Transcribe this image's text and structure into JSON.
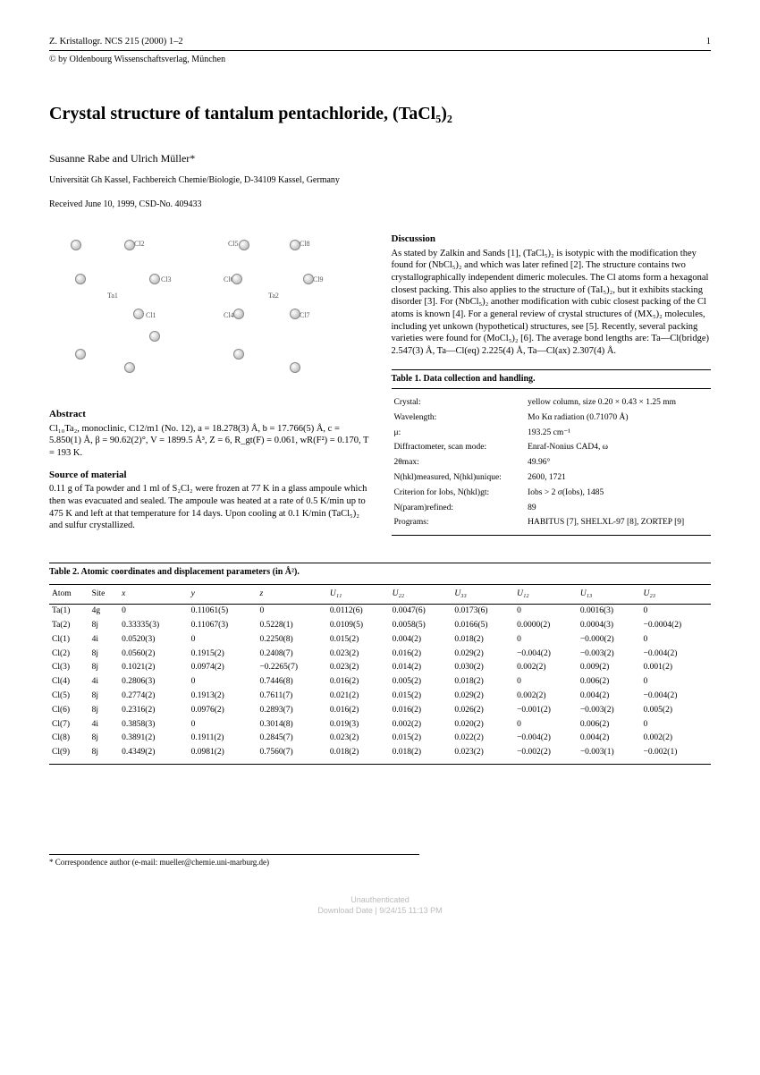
{
  "header": {
    "journal_left": "Z. Kristallogr. NCS 215 (2000) 1–2",
    "page_number": "1",
    "copyright": "© by Oldenbourg Wissenschaftsverlag, München"
  },
  "title": "Crystal structure of tantalum pentachloride, (TaCl₅)₂",
  "authors": "Susanne Rabe and Ulrich Müller*",
  "affiliation": "Universität Gh Kassel, Fachbereich Chemie/Biologie, D-34109 Kassel, Germany",
  "received": "Received June 10, 1999, CSD-No. 409433",
  "figure_labels": [
    "Cl2",
    "Cl3",
    "Cl1",
    "Ta1",
    "Cl5",
    "Cl6",
    "Cl8",
    "Cl4",
    "Cl9",
    "Ta2",
    "Cl7"
  ],
  "abstract": {
    "heading": "Abstract",
    "text": "Cl₁₀Ta₂, monoclinic, C12/m1 (No. 12), a = 18.278(3) Å, b = 17.766(5) Å, c = 5.850(1) Å, β = 90.62(2)°, V = 1899.5 Å³, Z = 6, R_gt(F) = 0.061, wR(F²) = 0.170, T = 193 K."
  },
  "source": {
    "heading": "Source of material",
    "text": "0.11 g of Ta powder and 1 ml of S₂Cl₂ were frozen at 77 K in a glass ampoule which then was evacuated and sealed. The ampoule was heated at a rate of 0.5 K/min up to 475 K and left at that temperature for 14 days. Upon cooling at 0.1 K/min (TaCl₅)₂ and sulfur crystallized."
  },
  "discussion": {
    "heading": "Discussion",
    "text": "As stated by Zalkin and Sands [1], (TaCl₅)₂ is isotypic with the modification they found for (NbCl₅)₂ and which was later refined [2]. The structure contains two crystallographically independent dimeric molecules. The Cl atoms form a hexagonal closest packing. This also applies to the structure of (TaI₅)₂, but it exhibits stacking disorder [3]. For (NbCl₅)₂ another modification with cubic closest packing of the Cl atoms is known [4]. For a general review of crystal structures of (MX₅)₂ molecules, including yet unkown (hypothetical) structures, see [5]. Recently, several packing varieties were found for (MoCl₅)₂ [6]. The average bond lengths are: Ta—Cl(bridge) 2.547(3) Å, Ta—Cl(eq) 2.225(4) Å, Ta—Cl(ax) 2.307(4) Å."
  },
  "table1": {
    "caption": "Table 1. Data collection and handling.",
    "rows": [
      [
        "Crystal:",
        "yellow column, size 0.20 × 0.43 × 1.25 mm"
      ],
      [
        "Wavelength:",
        "Mo Kα radiation (0.71070 Å)"
      ],
      [
        "μ:",
        "193.25 cm⁻¹"
      ],
      [
        "Diffractometer, scan mode:",
        "Enraf-Nonius CAD4, ω"
      ],
      [
        "2θmax:",
        "49.96°"
      ],
      [
        "N(hkl)measured, N(hkl)unique:",
        "2600, 1721"
      ],
      [
        "Criterion for Iobs, N(hkl)gt:",
        "Iobs > 2 σ(Iobs), 1485"
      ],
      [
        "N(param)refined:",
        "89"
      ],
      [
        "Programs:",
        "HABITUS [7], SHELXL-97 [8], ZORTEP [9]"
      ]
    ]
  },
  "table2": {
    "caption": "Table 2. Atomic coordinates and displacement parameters (in Å²).",
    "headers": [
      "Atom",
      "Site",
      "x",
      "y",
      "z",
      "U₁₁",
      "U₂₂",
      "U₃₃",
      "U₁₂",
      "U₁₃",
      "U₂₃"
    ],
    "rows": [
      [
        "Ta(1)",
        "4g",
        "0",
        "0.11061(5)",
        "0",
        "0.0112(6)",
        "0.0047(6)",
        "0.0173(6)",
        "0",
        "0.0016(3)",
        "0"
      ],
      [
        "Ta(2)",
        "8j",
        "0.33335(3)",
        "0.11067(3)",
        "0.5228(1)",
        "0.0109(5)",
        "0.0058(5)",
        "0.0166(5)",
        "0.0000(2)",
        "0.0004(3)",
        "−0.0004(2)"
      ],
      [
        "Cl(1)",
        "4i",
        "0.0520(3)",
        "0",
        "0.2250(8)",
        "0.015(2)",
        "0.004(2)",
        "0.018(2)",
        "0",
        "−0.000(2)",
        "0"
      ],
      [
        "Cl(2)",
        "8j",
        "0.0560(2)",
        "0.1915(2)",
        "0.2408(7)",
        "0.023(2)",
        "0.016(2)",
        "0.029(2)",
        "−0.004(2)",
        "−0.003(2)",
        "−0.004(2)"
      ],
      [
        "Cl(3)",
        "8j",
        "0.1021(2)",
        "0.0974(2)",
        "−0.2265(7)",
        "0.023(2)",
        "0.014(2)",
        "0.030(2)",
        "0.002(2)",
        "0.009(2)",
        "0.001(2)"
      ],
      [
        "Cl(4)",
        "4i",
        "0.2806(3)",
        "0",
        "0.7446(8)",
        "0.016(2)",
        "0.005(2)",
        "0.018(2)",
        "0",
        "0.006(2)",
        "0"
      ],
      [
        "Cl(5)",
        "8j",
        "0.2774(2)",
        "0.1913(2)",
        "0.7611(7)",
        "0.021(2)",
        "0.015(2)",
        "0.029(2)",
        "0.002(2)",
        "0.004(2)",
        "−0.004(2)"
      ],
      [
        "Cl(6)",
        "8j",
        "0.2316(2)",
        "0.0976(2)",
        "0.2893(7)",
        "0.016(2)",
        "0.016(2)",
        "0.026(2)",
        "−0.001(2)",
        "−0.003(2)",
        "0.005(2)"
      ],
      [
        "Cl(7)",
        "4i",
        "0.3858(3)",
        "0",
        "0.3014(8)",
        "0.019(3)",
        "0.002(2)",
        "0.020(2)",
        "0",
        "0.006(2)",
        "0"
      ],
      [
        "Cl(8)",
        "8j",
        "0.3891(2)",
        "0.1911(2)",
        "0.2845(7)",
        "0.023(2)",
        "0.015(2)",
        "0.022(2)",
        "−0.004(2)",
        "0.004(2)",
        "0.002(2)"
      ],
      [
        "Cl(9)",
        "8j",
        "0.4349(2)",
        "0.0981(2)",
        "0.7560(7)",
        "0.018(2)",
        "0.018(2)",
        "0.023(2)",
        "−0.002(2)",
        "−0.003(1)",
        "−0.002(1)"
      ]
    ]
  },
  "footer": "* Correspondence author (e-mail: mueller@chemie.uni-marburg.de)",
  "watermark": {
    "line1": "Unauthenticated",
    "line2": "Download Date | 9/24/15 11:13 PM"
  }
}
